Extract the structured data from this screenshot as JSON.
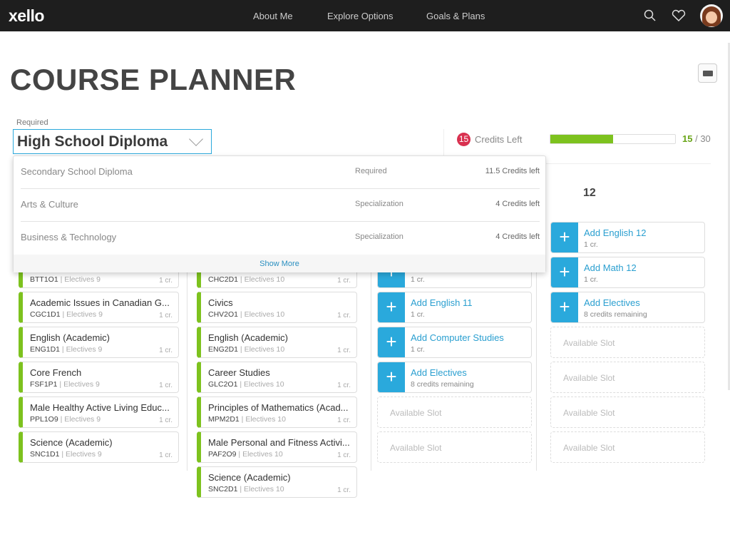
{
  "nav": {
    "logo": "xello",
    "links": [
      "About Me",
      "Explore Options",
      "Goals & Plans"
    ],
    "icons": [
      "search-icon",
      "heart-icon",
      "avatar"
    ]
  },
  "page": {
    "title": "COURSE PLANNER"
  },
  "plan": {
    "label": "Required",
    "selected": "High School Diploma",
    "credits_left": "15",
    "credits_left_label": "Credits Left",
    "earned": "15",
    "total": "/ 30",
    "progress_percent": 50,
    "accent": "#2aa9dc",
    "progress_color": "#7dc21e",
    "badge_color": "#d9304f"
  },
  "dropdown": {
    "options": [
      {
        "name": "Secondary School Diploma",
        "type": "Required",
        "credits": "11.5 Credits left"
      },
      {
        "name": "Arts & Culture",
        "type": "Specialization",
        "credits": "4 Credits left"
      },
      {
        "name": "Business & Technology",
        "type": "Specialization",
        "credits": "4 Credits left"
      }
    ],
    "show_more": "Show More"
  },
  "columns": [
    {
      "cards": [
        {
          "title": "",
          "code": "BTT1O1",
          "cat": "Electives 9",
          "cr": "1 cr."
        },
        {
          "title": "Academic Issues in Canadian G...",
          "code": "CGC1D1",
          "cat": "Electives 9",
          "cr": "1 cr."
        },
        {
          "title": "English (Academic)",
          "code": "ENG1D1",
          "cat": "Electives 9",
          "cr": "1 cr."
        },
        {
          "title": "Core French",
          "code": "FSF1P1",
          "cat": "Electives 9",
          "cr": "1 cr."
        },
        {
          "title": "Male Healthy Active Living Educ...",
          "code": "PPL1O9",
          "cat": "Electives 9",
          "cr": "1 cr."
        },
        {
          "title": "Science (Academic)",
          "code": "SNC1D1",
          "cat": "Electives 9",
          "cr": "1 cr."
        }
      ]
    },
    {
      "cards": [
        {
          "title": "",
          "code": "CHC2D1",
          "cat": "Electives 10",
          "cr": "1 cr."
        },
        {
          "title": "Civics",
          "code": "CHV2O1",
          "cat": "Electives 10",
          "cr": "1 cr."
        },
        {
          "title": "English (Academic)",
          "code": "ENG2D1",
          "cat": "Electives 10",
          "cr": "1 cr."
        },
        {
          "title": "Career Studies",
          "code": "GLC2O1",
          "cat": "Electives 10",
          "cr": "1 cr."
        },
        {
          "title": "Principles of Mathematics (Acad...",
          "code": "MPM2D1",
          "cat": "Electives 10",
          "cr": "1 cr."
        },
        {
          "title": "Male Personal and Fitness Activi...",
          "code": "PAF2O9",
          "cat": "Electives 10",
          "cr": "1 cr."
        },
        {
          "title": "Science (Academic)",
          "code": "SNC2D1",
          "cat": "Electives 10",
          "cr": "1 cr."
        }
      ]
    },
    {
      "adds": [
        {
          "title": "",
          "sub": "1 cr."
        },
        {
          "title": "Add English 11",
          "sub": "1 cr."
        },
        {
          "title": "Add Computer Studies",
          "sub": "1 cr."
        },
        {
          "title": "Add Electives",
          "sub": "8 credits remaining"
        }
      ],
      "slots": [
        "Available Slot",
        "Available Slot"
      ]
    },
    {
      "header": "12",
      "adds": [
        {
          "title": "Add English 12",
          "sub": "1 cr."
        },
        {
          "title": "Add Math 12",
          "sub": "1 cr."
        },
        {
          "title": "Add Electives",
          "sub": "8 credits remaining"
        }
      ],
      "slots": [
        "Available Slot",
        "Available Slot",
        "Available Slot",
        "Available Slot"
      ]
    }
  ]
}
